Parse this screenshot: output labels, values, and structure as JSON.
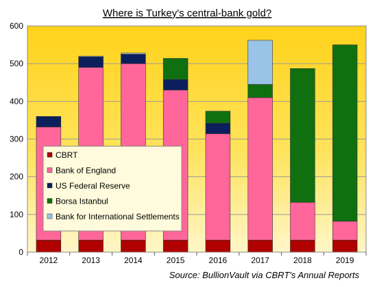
{
  "chart_data": {
    "type": "bar",
    "stacked": true,
    "title": "Where is Turkey's  central-bank  gold?",
    "source": "Source:  BullionVault via CBRT's Annual Reports",
    "categories": [
      "2012",
      "2013",
      "2014",
      "2015",
      "2016",
      "2017",
      "2018",
      "2019"
    ],
    "ylim": [
      0,
      600
    ],
    "yticks": [
      0,
      100,
      200,
      300,
      400,
      500,
      600
    ],
    "series": [
      {
        "name": "CBRT",
        "color": "#b00000",
        "values": [
          32,
          32,
          32,
          32,
          32,
          32,
          32,
          32
        ]
      },
      {
        "name": "Bank of England",
        "color": "#ff6699",
        "values": [
          300,
          458,
          468,
          398,
          282,
          378,
          100,
          50
        ]
      },
      {
        "name": "US Federal Reserve",
        "color": "#0b1f5c",
        "values": [
          28,
          28,
          25,
          28,
          28,
          0,
          0,
          0
        ]
      },
      {
        "name": "Borsa Istanbul",
        "color": "#107010",
        "values": [
          0,
          0,
          0,
          56,
          32,
          35,
          355,
          468
        ]
      },
      {
        "name": "Bank for International Settlements",
        "color": "#99c4e8",
        "values": [
          0,
          2,
          3,
          0,
          0,
          117,
          0,
          0
        ]
      }
    ],
    "legend_position": "left"
  }
}
